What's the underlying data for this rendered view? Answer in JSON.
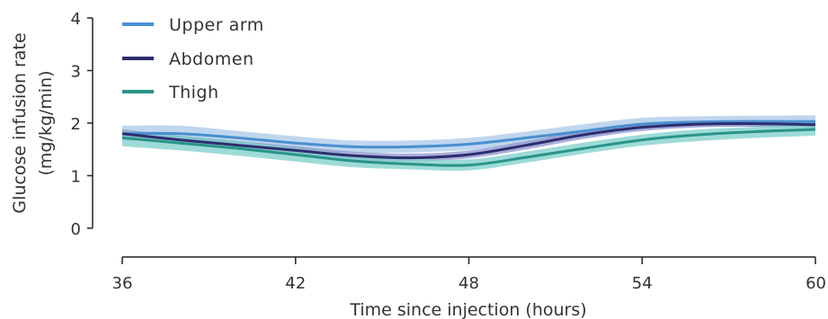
{
  "chart_data": {
    "type": "line",
    "title": "",
    "xlabel": "Time since injection (hours)",
    "ylabel": "Glucose infusion rate",
    "ylabel_units": "(mg/kg/min)",
    "xlim": [
      36,
      60
    ],
    "ylim": [
      0,
      4
    ],
    "x_ticks": [
      36,
      42,
      48,
      54,
      60
    ],
    "y_ticks": [
      0,
      1,
      2,
      3,
      4
    ],
    "grid": false,
    "legend_position": "top-left",
    "x": [
      36,
      38,
      40,
      42,
      44,
      46,
      48,
      50,
      52,
      54,
      56,
      58,
      60
    ],
    "series": [
      {
        "name": "Upper arm",
        "color": "#4a8fd0",
        "band_color": "#a9c8e8",
        "values": [
          1.8,
          1.8,
          1.72,
          1.62,
          1.55,
          1.55,
          1.6,
          1.72,
          1.85,
          1.98,
          2.02,
          2.03,
          2.03
        ],
        "lower": [
          1.67,
          1.67,
          1.6,
          1.5,
          1.44,
          1.44,
          1.49,
          1.6,
          1.73,
          1.88,
          1.93,
          1.93,
          1.93
        ],
        "upper": [
          1.95,
          1.95,
          1.85,
          1.75,
          1.67,
          1.67,
          1.72,
          1.84,
          1.98,
          2.1,
          2.13,
          2.14,
          2.15
        ]
      },
      {
        "name": "Abdomen",
        "color": "#2d2d6e",
        "band_color": "#8f94cf",
        "values": [
          1.8,
          1.68,
          1.58,
          1.48,
          1.38,
          1.34,
          1.4,
          1.58,
          1.78,
          1.92,
          1.98,
          1.99,
          1.97
        ],
        "lower": [
          1.72,
          1.6,
          1.5,
          1.4,
          1.3,
          1.27,
          1.33,
          1.5,
          1.7,
          1.85,
          1.92,
          1.93,
          1.91
        ],
        "upper": [
          1.88,
          1.76,
          1.66,
          1.56,
          1.46,
          1.42,
          1.48,
          1.66,
          1.86,
          2.0,
          2.05,
          2.06,
          2.04
        ]
      },
      {
        "name": "Thigh",
        "color": "#2a9488",
        "band_color": "#7dcfcb",
        "values": [
          1.72,
          1.62,
          1.52,
          1.4,
          1.28,
          1.22,
          1.2,
          1.35,
          1.52,
          1.68,
          1.78,
          1.84,
          1.88
        ],
        "lower": [
          1.56,
          1.48,
          1.38,
          1.27,
          1.16,
          1.12,
          1.1,
          1.25,
          1.42,
          1.57,
          1.66,
          1.72,
          1.76
        ],
        "upper": [
          1.85,
          1.76,
          1.66,
          1.53,
          1.4,
          1.33,
          1.31,
          1.46,
          1.63,
          1.78,
          1.88,
          1.93,
          1.97
        ]
      }
    ]
  }
}
